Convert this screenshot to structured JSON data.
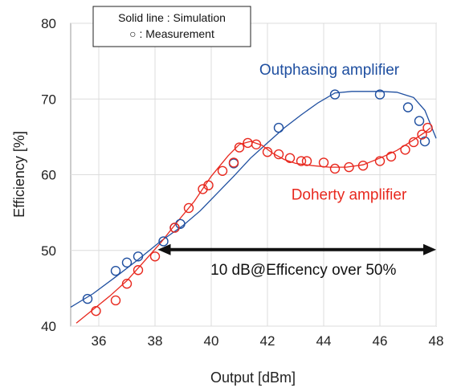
{
  "chart_data": {
    "type": "line",
    "xlabel": "Output [dBm]",
    "ylabel": "Efficiency [%]",
    "xlim": [
      35,
      48
    ],
    "ylim": [
      40,
      80
    ],
    "xticks": [
      36,
      38,
      40,
      42,
      44,
      46,
      48
    ],
    "yticks": [
      40,
      50,
      60,
      70,
      80
    ],
    "grid": true,
    "legend": {
      "position": "top-left",
      "line1": "Solid line : Simulation",
      "line2": "○ : Measurement"
    },
    "annotation": {
      "text": "10 dB@Efficency over 50%",
      "from": [
        38.1,
        50.1
      ],
      "to": [
        48.0,
        50.1
      ]
    },
    "series": [
      {
        "name": "Outphasing amplifier",
        "color": "#1f4fa0",
        "label_at": [
          44.2,
          73.2
        ],
        "simulation": {
          "x": [
            35.0,
            35.8,
            36.6,
            37.4,
            38.2,
            39.0,
            39.6,
            40.2,
            40.8,
            41.4,
            42.0,
            42.6,
            43.2,
            43.8,
            44.4,
            45.0,
            45.6,
            46.0,
            46.6,
            47.2,
            47.6,
            48.0
          ],
          "y": [
            42.5,
            44.3,
            46.5,
            48.8,
            51.2,
            53.3,
            55.2,
            57.5,
            59.8,
            62.2,
            64.2,
            66.2,
            67.9,
            69.5,
            70.8,
            71.0,
            71.0,
            71.0,
            70.9,
            70.2,
            68.5,
            64.8
          ]
        },
        "measurement": {
          "x": [
            35.6,
            36.6,
            37.0,
            37.4,
            38.3,
            38.7,
            38.9,
            40.8,
            42.4,
            44.4,
            46.0,
            47.0,
            47.4,
            47.6
          ],
          "y": [
            43.6,
            47.3,
            48.4,
            49.2,
            51.2,
            53.0,
            53.5,
            61.5,
            66.2,
            70.6,
            70.6,
            68.9,
            67.1,
            64.4
          ]
        }
      },
      {
        "name": "Doherty amplifier",
        "color": "#e8281e",
        "label_at": [
          44.9,
          56.7
        ],
        "simulation": {
          "x": [
            35.2,
            35.8,
            36.4,
            37.0,
            37.6,
            38.2,
            38.8,
            39.4,
            40.0,
            40.6,
            41.0,
            41.4,
            41.8,
            42.2,
            42.6,
            43.0,
            43.6,
            44.2,
            44.8,
            45.4,
            46.0,
            46.6,
            47.2,
            47.6,
            47.8
          ],
          "y": [
            40.4,
            42.2,
            44.0,
            46.0,
            48.5,
            51.0,
            53.8,
            56.5,
            59.8,
            62.5,
            64.0,
            64.4,
            63.9,
            62.8,
            62.0,
            61.5,
            61.2,
            61.0,
            61.0,
            61.3,
            62.2,
            63.2,
            64.6,
            65.6,
            66.2
          ]
        },
        "measurement": {
          "x": [
            35.9,
            36.6,
            37.0,
            37.4,
            38.0,
            38.7,
            39.2,
            39.7,
            39.9,
            40.4,
            40.8,
            41.0,
            41.3,
            41.6,
            42.0,
            42.4,
            42.8,
            43.2,
            43.4,
            44.0,
            44.4,
            44.9,
            45.4,
            46.0,
            46.4,
            46.9,
            47.2,
            47.5,
            47.7
          ],
          "y": [
            42.0,
            43.4,
            45.6,
            47.4,
            49.2,
            53.0,
            55.6,
            58.1,
            58.6,
            60.5,
            61.6,
            63.6,
            64.2,
            64.0,
            63.0,
            62.7,
            62.2,
            61.8,
            61.8,
            61.6,
            60.8,
            61.0,
            61.2,
            61.8,
            62.4,
            63.3,
            64.3,
            65.3,
            66.2
          ]
        }
      }
    ]
  }
}
